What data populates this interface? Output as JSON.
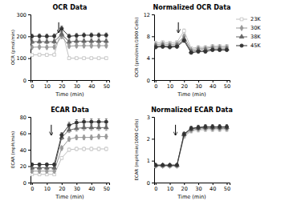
{
  "chart_data": [
    {
      "type": "line",
      "title": "OCR Data",
      "x_label": "Time (min)",
      "y_label": "OCR (pmol/min)",
      "x": [
        0,
        5,
        10,
        15,
        20,
        25,
        30,
        35,
        40,
        45,
        50
      ],
      "xlim": [
        -1,
        52
      ],
      "xticks": [
        0,
        10,
        20,
        30,
        40,
        50
      ],
      "ylim": [
        0,
        300
      ],
      "yticks": [
        0,
        100,
        200,
        300
      ],
      "arrow": {
        "x": 18,
        "y_start": 264,
        "y_end": 216
      },
      "series": [
        {
          "name": "23K",
          "color": "#c0c0c0",
          "marker": "square-open",
          "values": [
            115,
            116,
            115,
            116,
            235,
            100,
            100,
            100,
            100,
            100,
            100
          ],
          "errors": [
            5.75,
            5.8,
            5.75,
            5.8,
            11.75,
            5,
            5,
            5,
            5,
            5,
            5
          ]
        },
        {
          "name": "30K",
          "color": "#999999",
          "marker": "diamond",
          "values": [
            150,
            151,
            150,
            151,
            200,
            155,
            157,
            157,
            157,
            157,
            157
          ],
          "errors": [
            7.5,
            7.55,
            7.5,
            7.55,
            10,
            7.75,
            7.85,
            7.85,
            7.85,
            7.85,
            7.85
          ]
        },
        {
          "name": "38K",
          "color": "#666666",
          "marker": "triangle",
          "values": [
            175,
            176,
            175,
            176,
            210,
            175,
            178,
            178,
            178,
            178,
            178
          ],
          "errors": [
            8.75,
            8.8,
            8.75,
            8.8,
            10.5,
            8.75,
            8.9,
            8.9,
            8.9,
            8.9,
            8.9
          ]
        },
        {
          "name": "45K",
          "color": "#333333",
          "marker": "circle",
          "values": [
            200,
            201,
            200,
            201,
            235,
            200,
            203,
            205,
            205,
            205,
            205
          ],
          "errors": [
            10,
            10.05,
            10,
            10.05,
            11.75,
            10,
            10.15,
            10.25,
            10.25,
            10.25,
            10.25
          ]
        }
      ]
    },
    {
      "type": "line",
      "title": "Normalized OCR Data",
      "x_label": "Time (min)",
      "y_label": "OCR (pmol/min/1000 Cells)",
      "x": [
        0,
        5,
        10,
        15,
        20,
        25,
        30,
        35,
        40,
        45,
        50
      ],
      "xlim": [
        -1,
        52
      ],
      "xticks": [
        0,
        10,
        20,
        30,
        40,
        50
      ],
      "ylim": [
        0,
        12
      ],
      "yticks": [
        0,
        4,
        8,
        12
      ],
      "arrow": {
        "x": 16,
        "y_start": 10.56,
        "y_end": 8.64
      },
      "legend": "right",
      "series": [
        {
          "name": "23K",
          "color": "#c0c0c0",
          "marker": "square-open",
          "values": [
            6.8,
            6.9,
            6.8,
            6.9,
            9.0,
            5.8,
            6.0,
            6.0,
            6.2,
            6.2,
            6.2
          ],
          "errors": [
            0.272,
            0.276,
            0.272,
            0.276,
            0.36,
            0.232,
            0.24,
            0.24,
            0.248,
            0.248,
            0.248
          ]
        },
        {
          "name": "30K",
          "color": "#999999",
          "marker": "diamond",
          "values": [
            6.5,
            6.6,
            6.5,
            6.6,
            8.0,
            5.5,
            5.8,
            5.8,
            6.0,
            6.0,
            6.0
          ],
          "errors": [
            0.26,
            0.264,
            0.26,
            0.264,
            0.32,
            0.22,
            0.232,
            0.232,
            0.24,
            0.24,
            0.24
          ]
        },
        {
          "name": "38K",
          "color": "#666666",
          "marker": "triangle",
          "values": [
            6.2,
            6.3,
            6.2,
            6.3,
            7.5,
            5.2,
            5.5,
            5.5,
            5.7,
            5.7,
            5.7
          ],
          "errors": [
            0.248,
            0.252,
            0.248,
            0.252,
            0.3,
            0.208,
            0.22,
            0.22,
            0.228,
            0.228,
            0.228
          ]
        },
        {
          "name": "45K",
          "color": "#333333",
          "marker": "circle",
          "values": [
            6.0,
            6.1,
            6.0,
            6.1,
            7.2,
            5.0,
            5.2,
            5.2,
            5.5,
            5.5,
            5.5
          ],
          "errors": [
            0.24,
            0.244,
            0.24,
            0.244,
            0.288,
            0.2,
            0.208,
            0.208,
            0.22,
            0.22,
            0.22
          ]
        }
      ]
    },
    {
      "type": "line",
      "title": "ECAR Data",
      "x_label": "Time (min)",
      "y_label": "ECAR (mpH/min)",
      "x": [
        0,
        5,
        10,
        15,
        20,
        25,
        30,
        35,
        40,
        45,
        50
      ],
      "xlim": [
        -1,
        52
      ],
      "xticks": [
        0,
        10,
        20,
        30,
        40,
        50
      ],
      "ylim": [
        0,
        80
      ],
      "yticks": [
        0,
        20,
        40,
        60,
        80
      ],
      "arrow": {
        "x": 13,
        "y_start": 70.4,
        "y_end": 57.6
      },
      "series": [
        {
          "name": "23K",
          "color": "#c0c0c0",
          "marker": "square-open",
          "values": [
            10,
            10,
            10,
            10,
            30,
            40,
            41,
            41,
            41,
            41,
            41
          ],
          "errors": [
            0.5,
            0.5,
            0.5,
            0.5,
            1.5,
            2,
            2.05,
            2.05,
            2.05,
            2.05,
            2.05
          ]
        },
        {
          "name": "30K",
          "color": "#999999",
          "marker": "diamond",
          "values": [
            14,
            14,
            14,
            14,
            42,
            53,
            55,
            55,
            55,
            56,
            56
          ],
          "errors": [
            0.7,
            0.7,
            0.7,
            0.7,
            2.1,
            2.65,
            2.75,
            2.75,
            2.75,
            2.8,
            2.8
          ]
        },
        {
          "name": "38K",
          "color": "#666666",
          "marker": "triangle",
          "values": [
            18,
            18,
            18,
            18,
            55,
            64,
            66,
            67,
            67,
            67,
            67
          ],
          "errors": [
            0.9,
            0.9,
            0.9,
            0.9,
            2.75,
            3.2,
            3.3,
            3.35,
            3.35,
            3.35,
            3.35
          ]
        },
        {
          "name": "45K",
          "color": "#333333",
          "marker": "circle",
          "values": [
            22,
            22,
            22,
            22,
            58,
            70,
            73,
            74,
            74,
            74,
            74
          ],
          "errors": [
            1.1,
            1.1,
            1.1,
            1.1,
            2.9,
            3.5,
            3.65,
            3.7,
            3.7,
            3.7,
            3.7
          ]
        }
      ]
    },
    {
      "type": "line",
      "title": "Normalized ECAR Data",
      "x_label": "Time (min)",
      "y_label": "ECAR (mpH/min/1000 Cells)",
      "x": [
        0,
        5,
        10,
        15,
        20,
        25,
        30,
        35,
        40,
        45,
        50
      ],
      "xlim": [
        -1,
        52
      ],
      "xticks": [
        0,
        10,
        20,
        30,
        40,
        50
      ],
      "ylim": [
        0,
        3.0
      ],
      "yticks": [
        0,
        1,
        2,
        3
      ],
      "arrow": {
        "x": 14,
        "y_start": 2.64,
        "y_end": 2.16
      },
      "series": [
        {
          "name": "23K",
          "color": "#c0c0c0",
          "marker": "square-open",
          "values": [
            0.75,
            0.75,
            0.75,
            0.75,
            2.1,
            2.35,
            2.4,
            2.42,
            2.42,
            2.42,
            2.42
          ],
          "errors": [
            0.03,
            0.03,
            0.03,
            0.03,
            0.084,
            0.094,
            0.096,
            0.0968,
            0.0968,
            0.0968,
            0.0968
          ]
        },
        {
          "name": "30K",
          "color": "#999999",
          "marker": "diamond",
          "values": [
            0.77,
            0.77,
            0.77,
            0.77,
            2.15,
            2.4,
            2.45,
            2.47,
            2.47,
            2.47,
            2.47
          ],
          "errors": [
            0.0308,
            0.0308,
            0.0308,
            0.0308,
            0.086,
            0.096,
            0.098,
            0.0988,
            0.0988,
            0.0988,
            0.0988
          ]
        },
        {
          "name": "38K",
          "color": "#666666",
          "marker": "triangle",
          "values": [
            0.79,
            0.79,
            0.79,
            0.79,
            2.2,
            2.45,
            2.5,
            2.52,
            2.52,
            2.52,
            2.52
          ],
          "errors": [
            0.0316,
            0.0316,
            0.0316,
            0.0316,
            0.088,
            0.098,
            0.1,
            0.1008,
            0.1008,
            0.1008,
            0.1008
          ]
        },
        {
          "name": "45K",
          "color": "#333333",
          "marker": "circle",
          "values": [
            0.8,
            0.8,
            0.8,
            0.8,
            2.22,
            2.48,
            2.52,
            2.55,
            2.55,
            2.55,
            2.55
          ],
          "errors": [
            0.032,
            0.032,
            0.032,
            0.032,
            0.0888,
            0.0992,
            0.1008,
            0.102,
            0.102,
            0.102,
            0.102
          ]
        }
      ]
    }
  ]
}
